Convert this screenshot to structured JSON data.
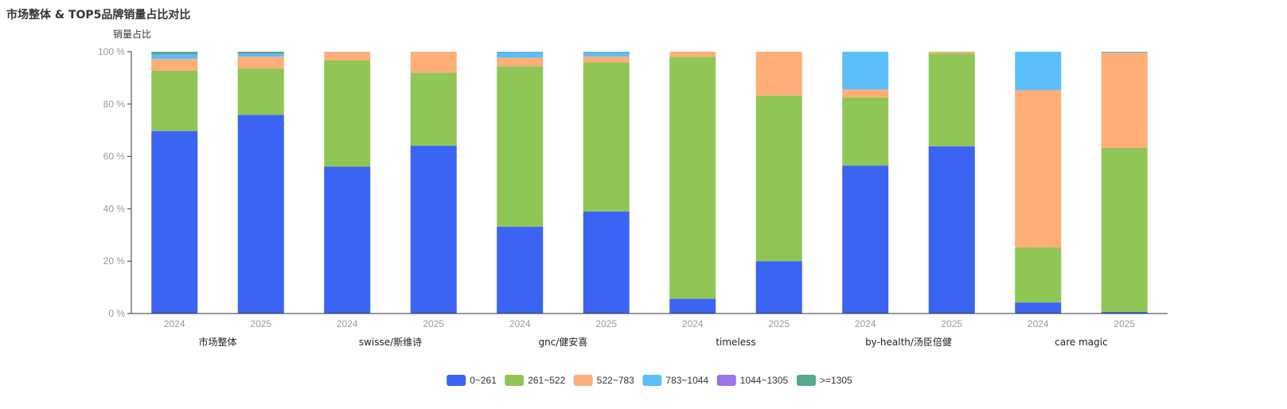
{
  "chart_data": {
    "type": "bar",
    "stacked": true,
    "title": "市场整体 & TOP5品牌销量占比对比",
    "ylabel": "销量占比",
    "ylim": [
      0,
      100
    ],
    "yticks": [
      0,
      20,
      40,
      60,
      80,
      100
    ],
    "ytick_labels": [
      "0 %",
      "20 %",
      "40 %",
      "60 %",
      "80 %",
      "100 %"
    ],
    "grid": false,
    "legend_position": "bottom-center",
    "groups": [
      "市场整体",
      "swisse/斯维诗",
      "gnc/健安喜",
      "timeless",
      "by-health/汤臣倍健",
      "care magic"
    ],
    "categories": [
      "2024",
      "2025",
      "2024",
      "2025",
      "2024",
      "2025",
      "2024",
      "2025",
      "2024",
      "2025",
      "2024",
      "2025"
    ],
    "series": [
      {
        "name": "0~261",
        "color": "#3b64f2",
        "values": [
          69.7,
          75.9,
          56.1,
          64.1,
          33.2,
          39.0,
          5.6,
          20.0,
          56.5,
          63.9,
          4.2,
          0.6
        ]
      },
      {
        "name": "261~522",
        "color": "#8fc655",
        "values": [
          23.0,
          17.7,
          40.6,
          27.9,
          61.2,
          56.9,
          92.5,
          63.2,
          26.1,
          35.4,
          21.1,
          62.6
        ]
      },
      {
        "name": "522~783",
        "color": "#ffae78",
        "values": [
          4.5,
          4.5,
          3.2,
          7.9,
          3.3,
          2.3,
          1.9,
          16.8,
          3.0,
          0.6,
          60.0,
          36.4
        ]
      },
      {
        "name": "783~1044",
        "color": "#5bbff9",
        "values": [
          1.7,
          1.0,
          0.1,
          0.1,
          2.0,
          1.5,
          0.0,
          0.0,
          14.4,
          0.0,
          14.7,
          0.2
        ]
      },
      {
        "name": "1044~1305",
        "color": "#9a74e8",
        "values": [
          0.2,
          0.2,
          0.0,
          0.0,
          0.1,
          0.1,
          0.0,
          0.0,
          0.0,
          0.0,
          0.0,
          0.0
        ]
      },
      {
        "name": ">=1305",
        "color": "#54a98a",
        "values": [
          0.9,
          0.7,
          0.0,
          0.0,
          0.2,
          0.2,
          0.0,
          0.0,
          0.0,
          0.1,
          0.0,
          0.2
        ]
      }
    ]
  }
}
